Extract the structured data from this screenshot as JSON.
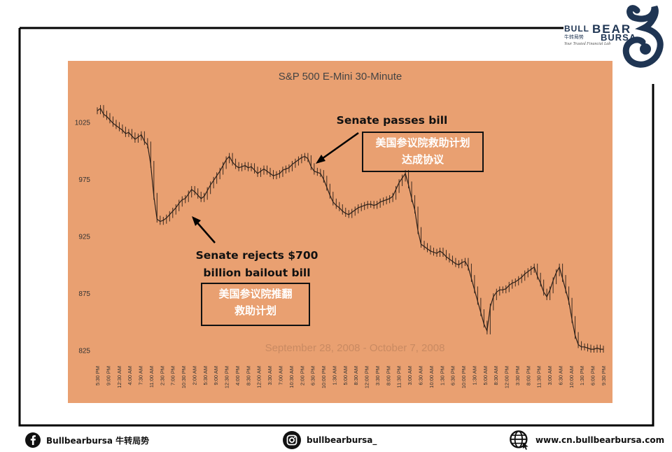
{
  "brand": {
    "name_left": "BULL",
    "name_right_top": "BEAR",
    "name_right_bottom": "BURSA",
    "name_cn": "牛转局势",
    "tagline": "Your Trusted Financial Lab"
  },
  "footer": {
    "facebook": "Bullbearbursa 牛转局势",
    "instagram": "bullbearbursa_",
    "website": "www.cn.bullbearbursa.com"
  },
  "colors": {
    "plot_bg": "#E9A071",
    "frame": "#000000",
    "brand_navy": "#1F3553"
  },
  "chart_data": {
    "type": "candlestick-line",
    "title": "S&P 500 E-Mini 30-Minute",
    "subtitle": "September 28, 2008 - October 7, 2008",
    "ylim": [
      815,
      1045
    ],
    "y_ticks": [
      "1025",
      "975",
      "925",
      "875",
      "825"
    ],
    "y_tick_values": [
      1025,
      975,
      925,
      875,
      825
    ],
    "x_ticks": [
      "5:30 PM",
      "9:00 PM",
      "12:30 AM",
      "4:00 AM",
      "7:30 AM",
      "11:00 AM",
      "2:30 PM",
      "7:00 PM",
      "10:30 PM",
      "2:00 AM",
      "5:30 AM",
      "9:00 AM",
      "12:30 PM",
      "4:00 PM",
      "8:30 PM",
      "12:00 AM",
      "3:30 AM",
      "7:00 AM",
      "10:30 AM",
      "2:00 PM",
      "6:30 PM",
      "10:00 PM",
      "1:30 AM",
      "5:00 AM",
      "8:30 AM",
      "12:00 PM",
      "3:30 PM",
      "8:00 PM",
      "11:30 PM",
      "3:00 AM",
      "6:30 AM",
      "10:00 AM",
      "1:30 PM",
      "6:30 PM",
      "10:00 PM",
      "1:30 AM",
      "5:00 AM",
      "8:30 AM",
      "12:00 PM",
      "3:30 PM",
      "8:00 PM",
      "11:30 PM",
      "3:00 AM",
      "6:30 AM",
      "10:00 AM",
      "1:30 PM",
      "6:00 PM",
      "9:30 PM"
    ],
    "values": [
      1035,
      1037,
      1032,
      1030,
      1027,
      1024,
      1022,
      1020,
      1018,
      1015,
      1016,
      1013,
      1010,
      1012,
      1014,
      1008,
      1005,
      988,
      960,
      940,
      938,
      939,
      941,
      944,
      947,
      950,
      954,
      957,
      958,
      962,
      966,
      964,
      961,
      958,
      960,
      965,
      970,
      974,
      978,
      982,
      987,
      992,
      995,
      990,
      987,
      985,
      986,
      987,
      985,
      986,
      983,
      980,
      982,
      984,
      982,
      980,
      978,
      979,
      980,
      983,
      984,
      985,
      988,
      990,
      992,
      994,
      995,
      993,
      986,
      982,
      981,
      980,
      975,
      968,
      961,
      955,
      952,
      950,
      947,
      945,
      944,
      946,
      948,
      950,
      951,
      952,
      953,
      953,
      952,
      953,
      955,
      956,
      957,
      958,
      960,
      966,
      972,
      976,
      980,
      970,
      958,
      948,
      930,
      918,
      916,
      914,
      912,
      911,
      910,
      912,
      910,
      907,
      905,
      903,
      901,
      900,
      902,
      903,
      898,
      888,
      878,
      868,
      858,
      848,
      842,
      863,
      872,
      876,
      878,
      878,
      879,
      882,
      884,
      885,
      887,
      889,
      892,
      894,
      896,
      898,
      890,
      884,
      876,
      872,
      878,
      886,
      893,
      898,
      888,
      878,
      868,
      852,
      838,
      830,
      828,
      828,
      827,
      826,
      826,
      827,
      826,
      826
    ],
    "annotations": [
      {
        "text": "Senate passes bill",
        "text_cn": "美国参议院救助计划达成协议"
      },
      {
        "text_line1": "Senate rejects $700",
        "text_line2": "billion bailout bill",
        "text_cn_line1": "美国参议院推翻",
        "text_cn_line2": "救助计划"
      }
    ]
  }
}
